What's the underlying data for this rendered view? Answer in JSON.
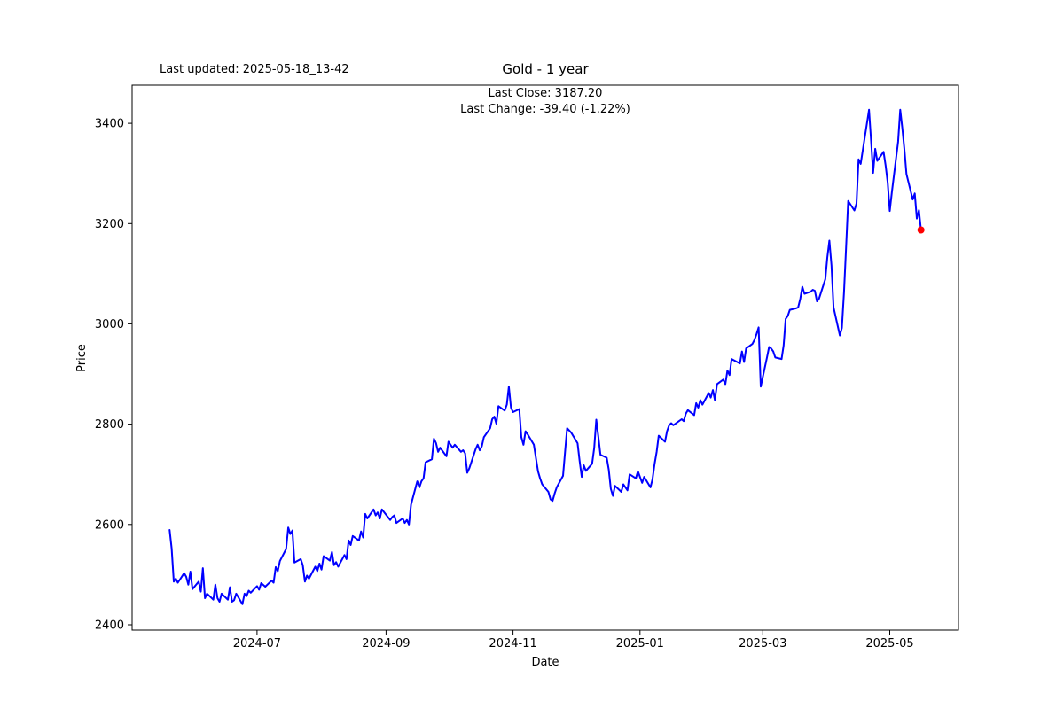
{
  "header": {
    "last_updated": "Last updated: 2025-05-18_13-42",
    "title": "Gold - 1 year"
  },
  "annotation": {
    "line1": "Last Close: 3187.20",
    "line2": "Last Change: -39.40 (-1.22%)"
  },
  "chart_data": {
    "type": "line",
    "title": "Gold - 1 year",
    "xlabel": "Date",
    "ylabel": "Price",
    "legend": "none",
    "grid": false,
    "line_color": "#0000ff",
    "last_point_color": "#ff0000",
    "axis_color": "#000000",
    "background_color": "#ffffff",
    "last_close": 3187.2,
    "last_change": -39.4,
    "last_change_pct": -1.22,
    "y_ticks": [
      2400,
      2600,
      2800,
      3000,
      3200,
      3400
    ],
    "x_ticks": [
      "2024-07",
      "2024-09",
      "2024-11",
      "2025-01",
      "2025-03",
      "2025-05"
    ],
    "ylim": [
      2389.4,
      3476.1
    ],
    "xlim": [
      "2024-05-02",
      "2025-06-03"
    ],
    "series": [
      {
        "name": "Gold",
        "data": [
          [
            "2024-05-20",
            2589
          ],
          [
            "2024-05-21",
            2552
          ],
          [
            "2024-05-22",
            2486
          ],
          [
            "2024-05-23",
            2492
          ],
          [
            "2024-05-24",
            2484
          ],
          [
            "2024-05-27",
            2503
          ],
          [
            "2024-05-28",
            2496
          ],
          [
            "2024-05-29",
            2480
          ],
          [
            "2024-05-30",
            2506
          ],
          [
            "2024-05-31",
            2471
          ],
          [
            "2024-06-03",
            2486
          ],
          [
            "2024-06-04",
            2466
          ],
          [
            "2024-06-05",
            2513
          ],
          [
            "2024-06-06",
            2453
          ],
          [
            "2024-06-07",
            2462
          ],
          [
            "2024-06-10",
            2450
          ],
          [
            "2024-06-11",
            2480
          ],
          [
            "2024-06-12",
            2453
          ],
          [
            "2024-06-13",
            2446
          ],
          [
            "2024-06-14",
            2462
          ],
          [
            "2024-06-17",
            2450
          ],
          [
            "2024-06-18",
            2475
          ],
          [
            "2024-06-19",
            2446
          ],
          [
            "2024-06-20",
            2449
          ],
          [
            "2024-06-21",
            2462
          ],
          [
            "2024-06-24",
            2441
          ],
          [
            "2024-06-25",
            2462
          ],
          [
            "2024-06-26",
            2457
          ],
          [
            "2024-06-27",
            2468
          ],
          [
            "2024-06-28",
            2464
          ],
          [
            "2024-07-01",
            2477
          ],
          [
            "2024-07-02",
            2470
          ],
          [
            "2024-07-03",
            2483
          ],
          [
            "2024-07-05",
            2476
          ],
          [
            "2024-07-08",
            2488
          ],
          [
            "2024-07-09",
            2484
          ],
          [
            "2024-07-10",
            2515
          ],
          [
            "2024-07-11",
            2507
          ],
          [
            "2024-07-12",
            2527
          ],
          [
            "2024-07-15",
            2551
          ],
          [
            "2024-07-16",
            2594
          ],
          [
            "2024-07-17",
            2581
          ],
          [
            "2024-07-18",
            2588
          ],
          [
            "2024-07-19",
            2524
          ],
          [
            "2024-07-22",
            2531
          ],
          [
            "2024-07-23",
            2519
          ],
          [
            "2024-07-24",
            2486
          ],
          [
            "2024-07-25",
            2498
          ],
          [
            "2024-07-26",
            2492
          ],
          [
            "2024-07-29",
            2516
          ],
          [
            "2024-07-30",
            2507
          ],
          [
            "2024-07-31",
            2522
          ],
          [
            "2024-08-01",
            2510
          ],
          [
            "2024-08-02",
            2537
          ],
          [
            "2024-08-05",
            2528
          ],
          [
            "2024-08-06",
            2545
          ],
          [
            "2024-08-07",
            2519
          ],
          [
            "2024-08-08",
            2525
          ],
          [
            "2024-08-09",
            2516
          ],
          [
            "2024-08-12",
            2539
          ],
          [
            "2024-08-13",
            2531
          ],
          [
            "2024-08-14",
            2568
          ],
          [
            "2024-08-15",
            2559
          ],
          [
            "2024-08-16",
            2577
          ],
          [
            "2024-08-19",
            2568
          ],
          [
            "2024-08-20",
            2586
          ],
          [
            "2024-08-21",
            2574
          ],
          [
            "2024-08-22",
            2621
          ],
          [
            "2024-08-23",
            2612
          ],
          [
            "2024-08-26",
            2630
          ],
          [
            "2024-08-27",
            2618
          ],
          [
            "2024-08-28",
            2624
          ],
          [
            "2024-08-29",
            2612
          ],
          [
            "2024-08-30",
            2630
          ],
          [
            "2024-09-03",
            2609
          ],
          [
            "2024-09-04",
            2615
          ],
          [
            "2024-09-05",
            2618
          ],
          [
            "2024-09-06",
            2603
          ],
          [
            "2024-09-09",
            2612
          ],
          [
            "2024-09-10",
            2603
          ],
          [
            "2024-09-11",
            2609
          ],
          [
            "2024-09-12",
            2600
          ],
          [
            "2024-09-13",
            2640
          ],
          [
            "2024-09-16",
            2686
          ],
          [
            "2024-09-17",
            2674
          ],
          [
            "2024-09-18",
            2686
          ],
          [
            "2024-09-19",
            2692
          ],
          [
            "2024-09-20",
            2724
          ],
          [
            "2024-09-23",
            2730
          ],
          [
            "2024-09-24",
            2771
          ],
          [
            "2024-09-25",
            2762
          ],
          [
            "2024-09-26",
            2745
          ],
          [
            "2024-09-27",
            2753
          ],
          [
            "2024-09-30",
            2736
          ],
          [
            "2024-10-01",
            2765
          ],
          [
            "2024-10-02",
            2759
          ],
          [
            "2024-10-03",
            2753
          ],
          [
            "2024-10-04",
            2759
          ],
          [
            "2024-10-07",
            2745
          ],
          [
            "2024-10-08",
            2748
          ],
          [
            "2024-10-09",
            2742
          ],
          [
            "2024-10-10",
            2703
          ],
          [
            "2024-10-11",
            2712
          ],
          [
            "2024-10-14",
            2750
          ],
          [
            "2024-10-15",
            2759
          ],
          [
            "2024-10-16",
            2748
          ],
          [
            "2024-10-17",
            2756
          ],
          [
            "2024-10-18",
            2774
          ],
          [
            "2024-10-21",
            2792
          ],
          [
            "2024-10-22",
            2810
          ],
          [
            "2024-10-23",
            2815
          ],
          [
            "2024-10-24",
            2801
          ],
          [
            "2024-10-25",
            2836
          ],
          [
            "2024-10-28",
            2827
          ],
          [
            "2024-10-29",
            2839
          ],
          [
            "2024-10-30",
            2875
          ],
          [
            "2024-10-31",
            2833
          ],
          [
            "2024-11-01",
            2824
          ],
          [
            "2024-11-04",
            2830
          ],
          [
            "2024-11-05",
            2774
          ],
          [
            "2024-11-06",
            2759
          ],
          [
            "2024-11-07",
            2786
          ],
          [
            "2024-11-08",
            2780
          ],
          [
            "2024-11-11",
            2759
          ],
          [
            "2024-11-12",
            2733
          ],
          [
            "2024-11-13",
            2706
          ],
          [
            "2024-11-14",
            2692
          ],
          [
            "2024-11-15",
            2680
          ],
          [
            "2024-11-18",
            2665
          ],
          [
            "2024-11-19",
            2650
          ],
          [
            "2024-11-20",
            2647
          ],
          [
            "2024-11-21",
            2662
          ],
          [
            "2024-11-22",
            2674
          ],
          [
            "2024-11-25",
            2697
          ],
          [
            "2024-11-26",
            2745
          ],
          [
            "2024-11-27",
            2792
          ],
          [
            "2024-11-29",
            2783
          ],
          [
            "2024-12-02",
            2762
          ],
          [
            "2024-12-03",
            2727
          ],
          [
            "2024-12-04",
            2695
          ],
          [
            "2024-12-05",
            2718
          ],
          [
            "2024-12-06",
            2707
          ],
          [
            "2024-12-09",
            2721
          ],
          [
            "2024-12-10",
            2753
          ],
          [
            "2024-12-11",
            2809
          ],
          [
            "2024-12-12",
            2774
          ],
          [
            "2024-12-13",
            2739
          ],
          [
            "2024-12-16",
            2733
          ],
          [
            "2024-12-17",
            2709
          ],
          [
            "2024-12-18",
            2671
          ],
          [
            "2024-12-19",
            2657
          ],
          [
            "2024-12-20",
            2677
          ],
          [
            "2024-12-23",
            2665
          ],
          [
            "2024-12-24",
            2680
          ],
          [
            "2024-12-26",
            2668
          ],
          [
            "2024-12-27",
            2700
          ],
          [
            "2024-12-30",
            2692
          ],
          [
            "2024-12-31",
            2706
          ],
          [
            "2025-01-02",
            2683
          ],
          [
            "2025-01-03",
            2695
          ],
          [
            "2025-01-06",
            2674
          ],
          [
            "2025-01-07",
            2690
          ],
          [
            "2025-01-08",
            2720
          ],
          [
            "2025-01-09",
            2745
          ],
          [
            "2025-01-10",
            2777
          ],
          [
            "2025-01-13",
            2765
          ],
          [
            "2025-01-14",
            2786
          ],
          [
            "2025-01-15",
            2798
          ],
          [
            "2025-01-16",
            2802
          ],
          [
            "2025-01-17",
            2798
          ],
          [
            "2025-01-21",
            2810
          ],
          [
            "2025-01-22",
            2806
          ],
          [
            "2025-01-23",
            2821
          ],
          [
            "2025-01-24",
            2828
          ],
          [
            "2025-01-27",
            2818
          ],
          [
            "2025-01-28",
            2842
          ],
          [
            "2025-01-29",
            2833
          ],
          [
            "2025-01-30",
            2848
          ],
          [
            "2025-01-31",
            2839
          ],
          [
            "2025-02-03",
            2862
          ],
          [
            "2025-02-04",
            2853
          ],
          [
            "2025-02-05",
            2868
          ],
          [
            "2025-02-06",
            2848
          ],
          [
            "2025-02-07",
            2880
          ],
          [
            "2025-02-10",
            2889
          ],
          [
            "2025-02-11",
            2880
          ],
          [
            "2025-02-12",
            2907
          ],
          [
            "2025-02-13",
            2898
          ],
          [
            "2025-02-14",
            2930
          ],
          [
            "2025-02-18",
            2921
          ],
          [
            "2025-02-19",
            2945
          ],
          [
            "2025-02-20",
            2924
          ],
          [
            "2025-02-21",
            2951
          ],
          [
            "2025-02-24",
            2960
          ],
          [
            "2025-02-25",
            2968
          ],
          [
            "2025-02-26",
            2980
          ],
          [
            "2025-02-27",
            2993
          ],
          [
            "2025-02-28",
            2875
          ],
          [
            "2025-03-03",
            2933
          ],
          [
            "2025-03-04",
            2954
          ],
          [
            "2025-03-05",
            2951
          ],
          [
            "2025-03-06",
            2945
          ],
          [
            "2025-03-07",
            2933
          ],
          [
            "2025-03-10",
            2930
          ],
          [
            "2025-03-11",
            2957
          ],
          [
            "2025-03-12",
            3010
          ],
          [
            "2025-03-13",
            3016
          ],
          [
            "2025-03-14",
            3028
          ],
          [
            "2025-03-17",
            3031
          ],
          [
            "2025-03-18",
            3033
          ],
          [
            "2025-03-19",
            3050
          ],
          [
            "2025-03-20",
            3074
          ],
          [
            "2025-03-21",
            3060
          ],
          [
            "2025-03-24",
            3064
          ],
          [
            "2025-03-25",
            3068
          ],
          [
            "2025-03-26",
            3066
          ],
          [
            "2025-03-27",
            3045
          ],
          [
            "2025-03-28",
            3050
          ],
          [
            "2025-03-31",
            3089
          ],
          [
            "2025-04-01",
            3133
          ],
          [
            "2025-04-02",
            3166
          ],
          [
            "2025-04-03",
            3116
          ],
          [
            "2025-04-04",
            3033
          ],
          [
            "2025-04-07",
            2977
          ],
          [
            "2025-04-08",
            2992
          ],
          [
            "2025-04-09",
            3063
          ],
          [
            "2025-04-10",
            3151
          ],
          [
            "2025-04-11",
            3245
          ],
          [
            "2025-04-14",
            3226
          ],
          [
            "2025-04-15",
            3240
          ],
          [
            "2025-04-16",
            3328
          ],
          [
            "2025-04-17",
            3319
          ],
          [
            "2025-04-21",
            3427
          ],
          [
            "2025-04-22",
            3366
          ],
          [
            "2025-04-23",
            3301
          ],
          [
            "2025-04-24",
            3349
          ],
          [
            "2025-04-25",
            3325
          ],
          [
            "2025-04-28",
            3343
          ],
          [
            "2025-04-29",
            3316
          ],
          [
            "2025-04-30",
            3281
          ],
          [
            "2025-05-01",
            3225
          ],
          [
            "2025-05-02",
            3263
          ],
          [
            "2025-05-05",
            3363
          ],
          [
            "2025-05-06",
            3427
          ],
          [
            "2025-05-07",
            3391
          ],
          [
            "2025-05-08",
            3348
          ],
          [
            "2025-05-09",
            3299
          ],
          [
            "2025-05-12",
            3248
          ],
          [
            "2025-05-13",
            3260
          ],
          [
            "2025-05-14",
            3210
          ],
          [
            "2025-05-15",
            3226.6
          ],
          [
            "2025-05-16",
            3187.2
          ]
        ]
      }
    ]
  }
}
